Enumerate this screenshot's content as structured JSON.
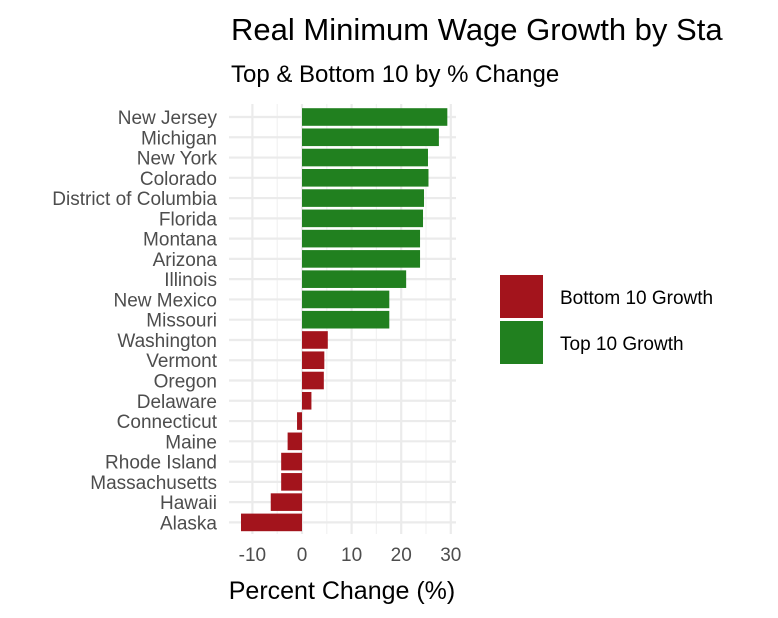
{
  "chart_data": {
    "type": "bar",
    "orientation": "horizontal",
    "title": "Real Minimum Wage Growth by Sta",
    "subtitle": "Top & Bottom 10 by % Change",
    "xlabel": "Percent Change (%)",
    "ylabel": "",
    "xlim": [
      -13,
      31
    ],
    "xticks": [
      -10,
      0,
      10,
      20,
      30
    ],
    "xtick_labels": [
      "-10",
      "0",
      "10",
      "20",
      "30"
    ],
    "grid": true,
    "legend_position": "right",
    "categories": [
      "New Jersey",
      "Michigan",
      "New York",
      "Colorado",
      "District of Columbia",
      "Florida",
      "Montana",
      "Arizona",
      "Illinois",
      "New Mexico",
      "Missouri",
      "Washington",
      "Vermont",
      "Oregon",
      "Delaware",
      "Connecticut",
      "Maine",
      "Rhode Island",
      "Massachusetts",
      "Hawaii",
      "Alaska"
    ],
    "values": [
      29.3,
      27.6,
      25.4,
      25.5,
      24.6,
      24.4,
      23.8,
      23.8,
      21.0,
      17.6,
      17.6,
      5.2,
      4.5,
      4.4,
      1.9,
      -1.0,
      -2.9,
      -4.2,
      -4.2,
      -6.3,
      -12.3
    ],
    "groups": [
      "Top 10 Growth",
      "Top 10 Growth",
      "Top 10 Growth",
      "Top 10 Growth",
      "Top 10 Growth",
      "Top 10 Growth",
      "Top 10 Growth",
      "Top 10 Growth",
      "Top 10 Growth",
      "Top 10 Growth",
      "Top 10 Growth",
      "Bottom 10 Growth",
      "Bottom 10 Growth",
      "Bottom 10 Growth",
      "Bottom 10 Growth",
      "Bottom 10 Growth",
      "Bottom 10 Growth",
      "Bottom 10 Growth",
      "Bottom 10 Growth",
      "Bottom 10 Growth",
      "Bottom 10 Growth"
    ],
    "legend": [
      {
        "name": "Bottom 10 Growth",
        "color": "#a3141c"
      },
      {
        "name": "Top 10 Growth",
        "color": "#21801f"
      }
    ]
  }
}
